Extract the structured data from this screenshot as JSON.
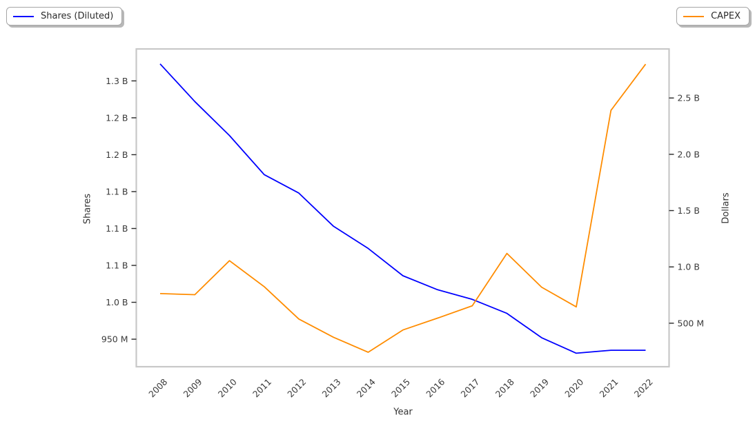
{
  "chart_data": {
    "type": "line",
    "x": [
      2008,
      2009,
      2010,
      2011,
      2012,
      2013,
      2014,
      2015,
      2016,
      2017,
      2018,
      2019,
      2020,
      2021,
      2022
    ],
    "series": [
      {
        "name": "Shares (Diluted)",
        "axis": "left",
        "color": "#0000ff",
        "unit": "billions",
        "values": [
          1.323,
          1.272,
          1.226,
          1.173,
          1.148,
          1.103,
          1.073,
          1.036,
          1.017,
          1.004,
          0.985,
          0.952,
          0.931,
          0.935,
          0.935
        ]
      },
      {
        "name": "CAPEX",
        "axis": "right",
        "color": "#ff8c00",
        "unit": "billions",
        "values": [
          0.763,
          0.753,
          1.055,
          0.825,
          0.537,
          0.375,
          0.242,
          0.44,
          0.545,
          0.655,
          1.12,
          0.82,
          0.645,
          2.39,
          2.8
        ]
      }
    ],
    "xlabel": "Year",
    "ylabel_left": "Shares",
    "ylabel_right": "Dollars",
    "left_ticks": [
      {
        "value": 0.95,
        "label": "950 M"
      },
      {
        "value": 1.0,
        "label": "1.0 B"
      },
      {
        "value": 1.05,
        "label": "1.1 B"
      },
      {
        "value": 1.1,
        "label": "1.1 B"
      },
      {
        "value": 1.15,
        "label": "1.1 B"
      },
      {
        "value": 1.2,
        "label": "1.2 B"
      },
      {
        "value": 1.25,
        "label": "1.2 B"
      },
      {
        "value": 1.3,
        "label": "1.3 B"
      }
    ],
    "right_ticks": [
      {
        "value": 0.5,
        "label": "500 M"
      },
      {
        "value": 1.0,
        "label": "1.0 B"
      },
      {
        "value": 1.5,
        "label": "1.5 B"
      },
      {
        "value": 2.0,
        "label": "2.0 B"
      },
      {
        "value": 2.5,
        "label": "2.5 B"
      }
    ],
    "left_ylim": [
      0.9127,
      1.3433
    ],
    "right_ylim": [
      0.1136,
      2.9355
    ],
    "grid": false,
    "legend_positions": [
      "outside-top-left",
      "outside-top-right"
    ]
  }
}
